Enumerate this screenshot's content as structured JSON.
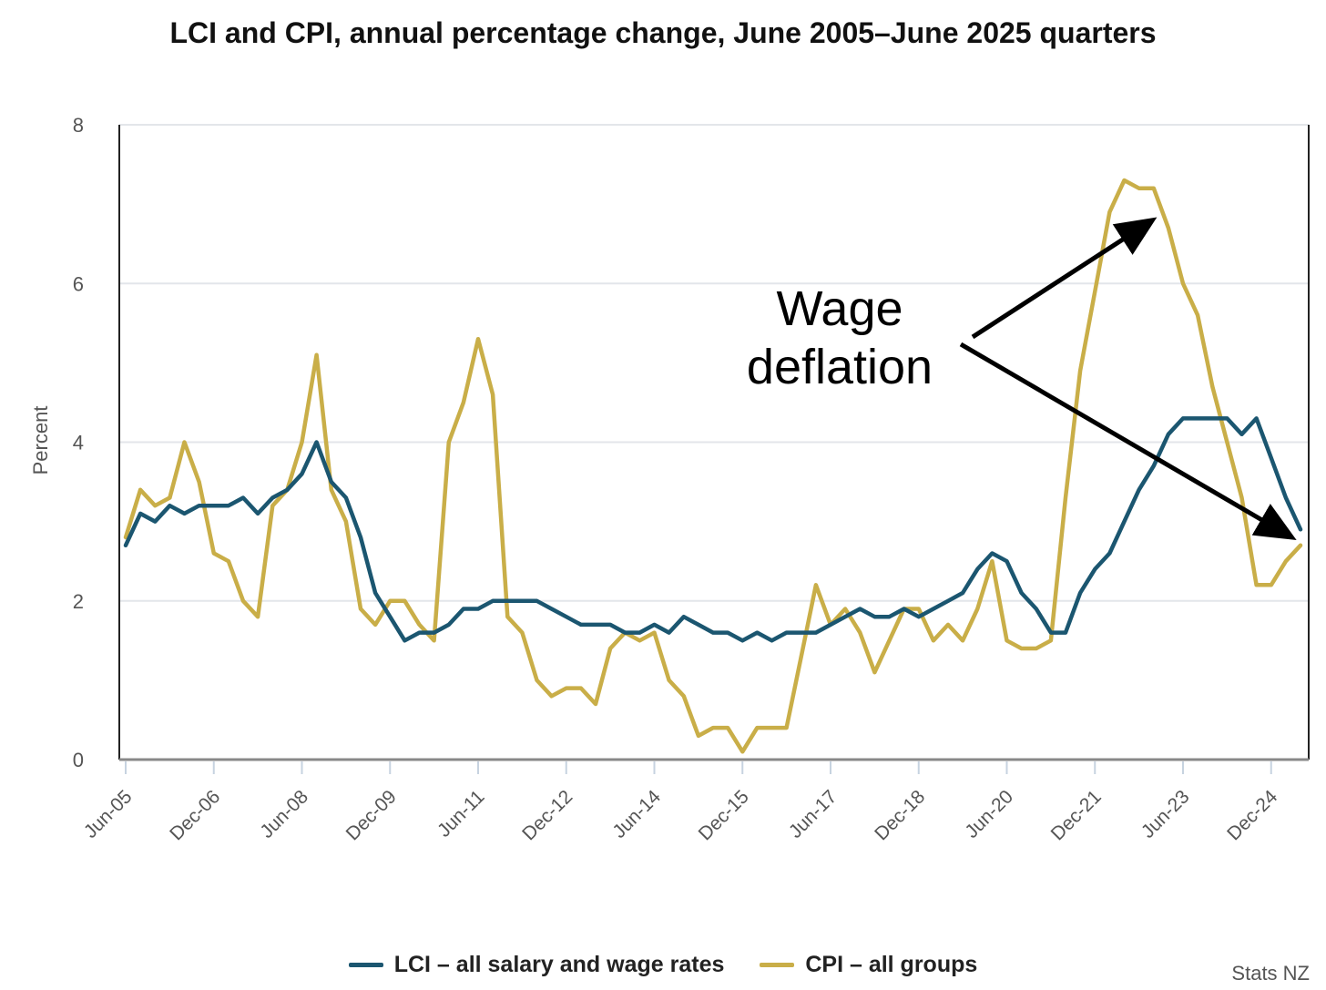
{
  "chart_data": {
    "type": "line",
    "title": "LCI and CPI, annual percentage change, June 2005–June 2025 quarters",
    "ylabel": "Percent",
    "xlabel": "",
    "ylim": [
      0,
      8
    ],
    "yticks": [
      "0",
      "2",
      "4",
      "6",
      "8"
    ],
    "xtick_labels": [
      "Jun-05",
      "Dec-06",
      "Jun-08",
      "Dec-09",
      "Jun-11",
      "Dec-12",
      "Jun-14",
      "Dec-15",
      "Jun-17",
      "Dec-18",
      "Jun-20",
      "Dec-21",
      "Jun-23",
      "Dec-24"
    ],
    "x_start": "Jun-05",
    "x_end": "Jun-25",
    "grid": "horizontal",
    "legend_position": "bottom",
    "annotation": {
      "line1": "Wage",
      "line2": "deflation"
    },
    "source": "Stats NZ",
    "series": [
      {
        "name": "LCI – all salary and wage rates",
        "color": "#1b5670",
        "values": [
          2.7,
          3.1,
          3.0,
          3.2,
          3.1,
          3.2,
          3.2,
          3.2,
          3.3,
          3.1,
          3.3,
          3.4,
          3.6,
          4.0,
          3.5,
          3.3,
          2.8,
          2.1,
          1.8,
          1.5,
          1.6,
          1.6,
          1.7,
          1.9,
          1.9,
          2.0,
          2.0,
          2.0,
          2.0,
          1.9,
          1.8,
          1.7,
          1.7,
          1.7,
          1.6,
          1.6,
          1.7,
          1.6,
          1.8,
          1.7,
          1.6,
          1.6,
          1.5,
          1.6,
          1.5,
          1.6,
          1.6,
          1.6,
          1.7,
          1.8,
          1.9,
          1.8,
          1.8,
          1.9,
          1.8,
          1.9,
          2.0,
          2.1,
          2.4,
          2.6,
          2.5,
          2.1,
          1.9,
          1.6,
          1.6,
          2.1,
          2.4,
          2.6,
          3.0,
          3.4,
          3.7,
          4.1,
          4.3,
          4.3,
          4.3,
          4.3,
          4.1,
          4.3,
          3.8,
          3.3,
          2.9
        ]
      },
      {
        "name": "CPI – all groups",
        "color": "#c9ae48",
        "values": [
          2.8,
          3.4,
          3.2,
          3.3,
          4.0,
          3.5,
          2.6,
          2.5,
          2.0,
          1.8,
          3.2,
          3.4,
          4.0,
          5.1,
          3.4,
          3.0,
          1.9,
          1.7,
          2.0,
          2.0,
          1.7,
          1.5,
          4.0,
          4.5,
          5.3,
          4.6,
          1.8,
          1.6,
          1.0,
          0.8,
          0.9,
          0.9,
          0.7,
          1.4,
          1.6,
          1.5,
          1.6,
          1.0,
          0.8,
          0.3,
          0.4,
          0.4,
          0.1,
          0.4,
          0.4,
          0.4,
          1.3,
          2.2,
          1.7,
          1.9,
          1.6,
          1.1,
          1.5,
          1.9,
          1.9,
          1.5,
          1.7,
          1.5,
          1.9,
          2.5,
          1.5,
          1.4,
          1.4,
          1.5,
          3.3,
          4.9,
          5.9,
          6.9,
          7.3,
          7.2,
          7.2,
          6.7,
          6.0,
          5.6,
          4.7,
          4.0,
          3.3,
          2.2,
          2.2,
          2.5,
          2.7
        ]
      }
    ]
  }
}
